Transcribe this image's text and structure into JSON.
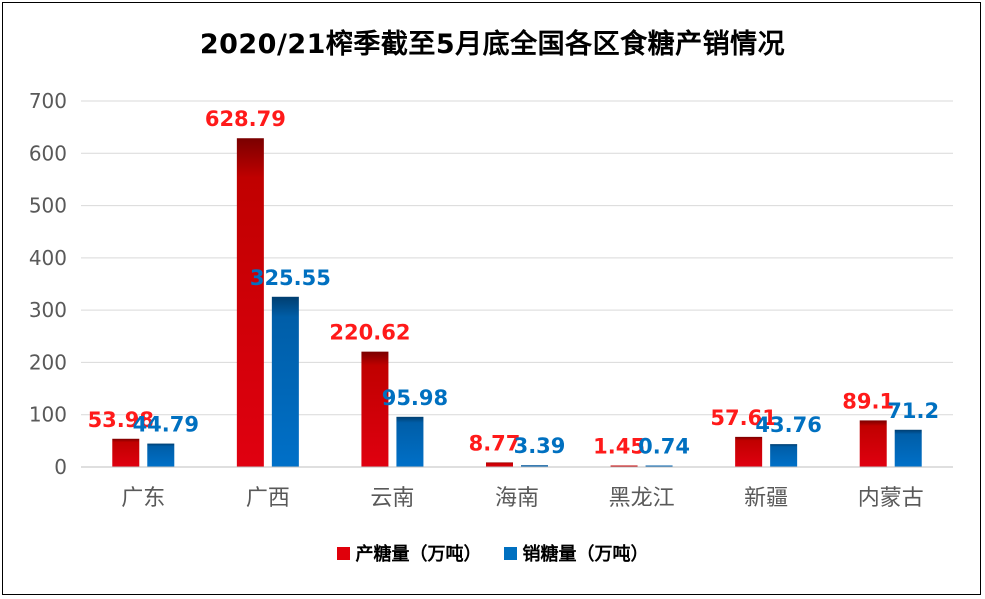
{
  "chart_data": {
    "type": "bar",
    "title": "2020/21榨季截至5月底全国各区食糖产销情况",
    "categories": [
      "广东",
      "广西",
      "云南",
      "海南",
      "黑龙江",
      "新疆",
      "内蒙古"
    ],
    "series": [
      {
        "name": "产糖量（万吨）",
        "color": "#e0000b",
        "label_color": "#ff1a1a",
        "values": [
          53.98,
          628.79,
          220.62,
          8.77,
          1.45,
          57.61,
          89.1
        ],
        "labels": [
          "53.98",
          "628.79",
          "220.62",
          "8.77",
          "1.45",
          "57.61",
          "89.1"
        ]
      },
      {
        "name": "销糖量（万吨）",
        "color": "#0070c0",
        "label_color": "#0070c0",
        "values": [
          44.79,
          325.55,
          95.98,
          3.39,
          0.74,
          43.76,
          71.2
        ],
        "labels": [
          "44.79",
          "325.55",
          "95.98",
          "3.39",
          "0.74",
          "43.76",
          "71.2"
        ]
      }
    ],
    "ylim": [
      0,
      700
    ],
    "yticks": [
      "0",
      "100",
      "200",
      "300",
      "400",
      "500",
      "600",
      "700"
    ],
    "ytick_values": [
      0,
      100,
      200,
      300,
      400,
      500,
      600,
      700
    ],
    "grid": true,
    "legend_position": "bottom"
  }
}
